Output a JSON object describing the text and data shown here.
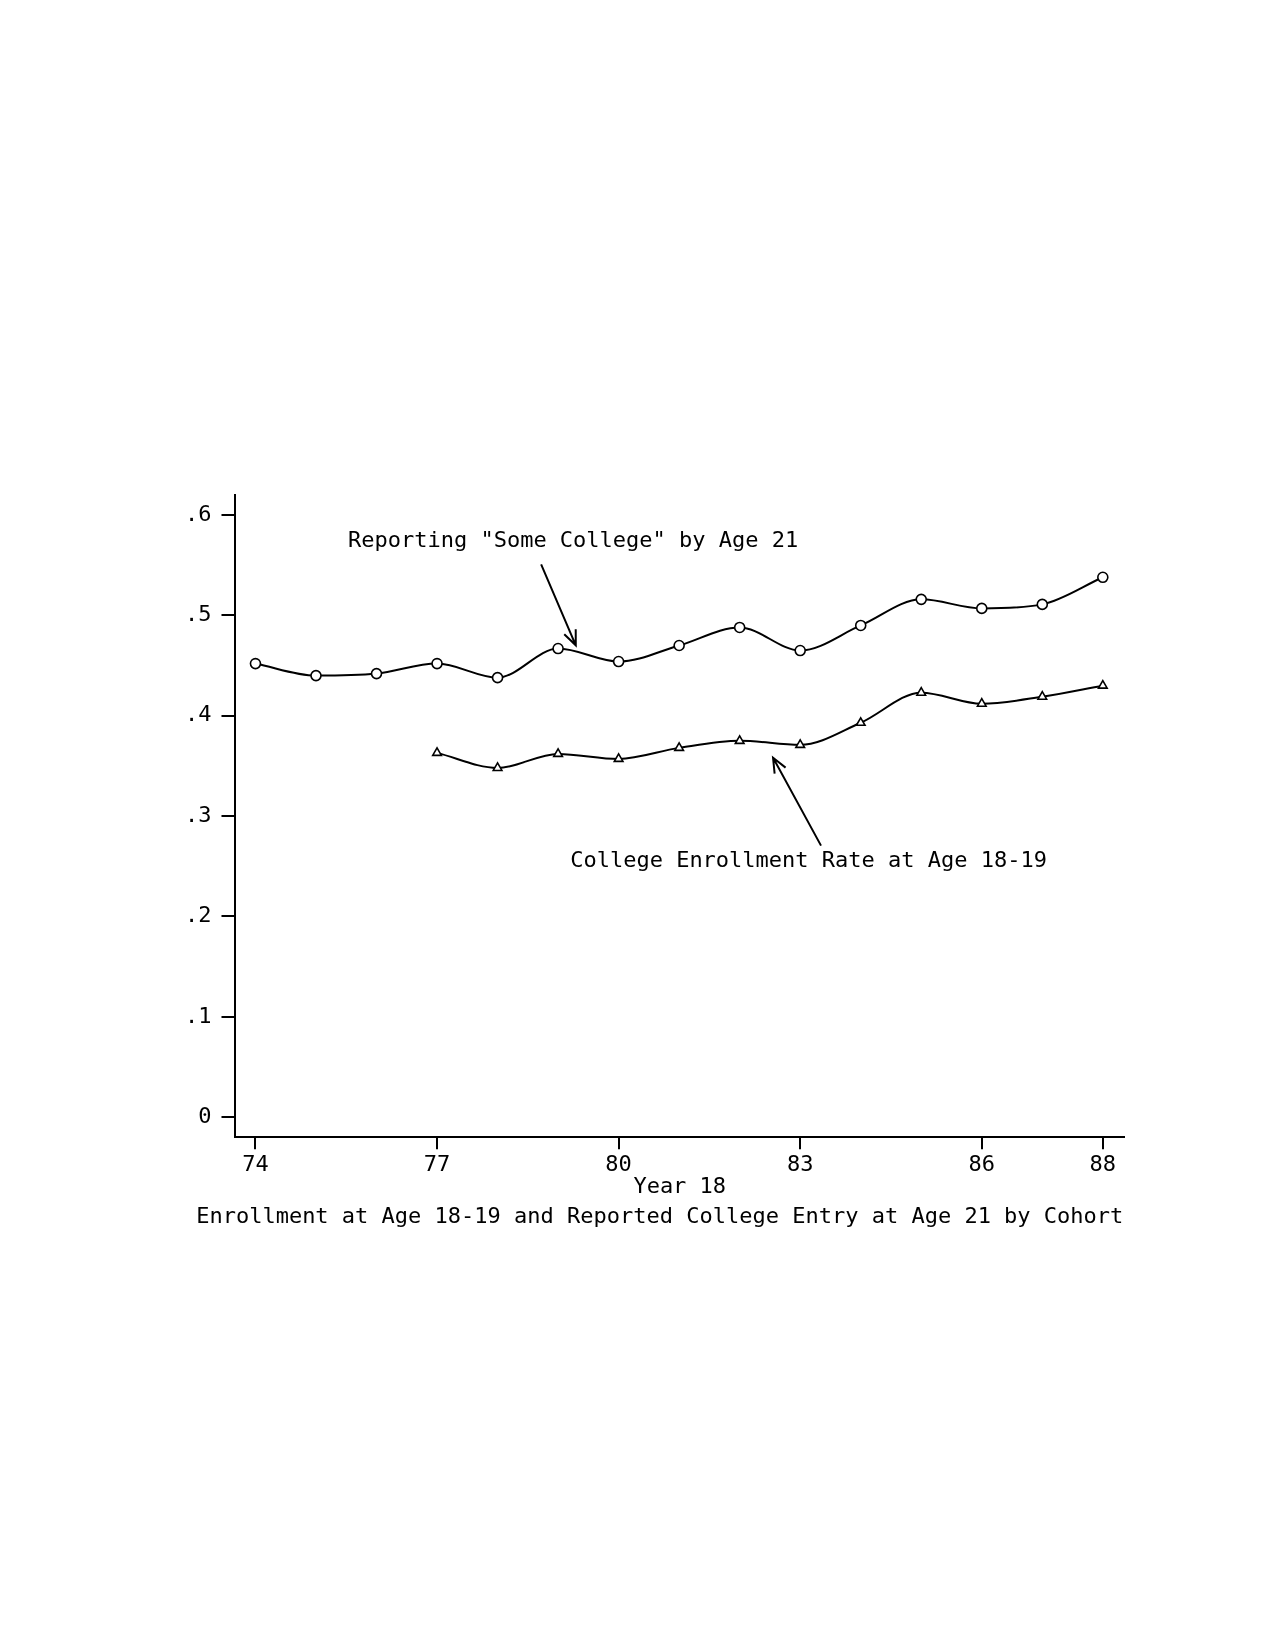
{
  "chart_data": {
    "type": "line",
    "title": "Enrollment at Age 18-19 and Reported College Entry at Age 21 by Cohort",
    "xlabel": "Year 18",
    "xlim": [
      73.67,
      88.35
    ],
    "xticks": [
      74,
      77,
      80,
      83,
      86,
      88
    ],
    "ylim": [
      -0.02,
      0.62
    ],
    "yticks": [
      {
        "value": 0,
        "label": "0"
      },
      {
        "value": 0.1,
        "label": ".1"
      },
      {
        "value": 0.2,
        "label": ".2"
      },
      {
        "value": 0.3,
        "label": ".3"
      },
      {
        "value": 0.4,
        "label": ".4"
      },
      {
        "value": 0.5,
        "label": ".5"
      },
      {
        "value": 0.6,
        "label": ".6"
      }
    ],
    "grid": false,
    "legend": false,
    "line_style": "solid",
    "series": [
      {
        "name": "Reporting \"Some College\" by Age 21",
        "color": "#000000",
        "marker": "circle",
        "x": [
          74,
          75,
          76,
          77,
          78,
          79,
          80,
          81,
          82,
          83,
          84,
          85,
          86,
          87,
          88
        ],
        "values": [
          0.452,
          0.44,
          0.442,
          0.452,
          0.438,
          0.467,
          0.454,
          0.47,
          0.488,
          0.465,
          0.49,
          0.516,
          0.507,
          0.511,
          0.538
        ]
      },
      {
        "name": "College Enrollment Rate at Age 18-19",
        "color": "#000000",
        "marker": "triangle",
        "x": [
          77,
          78,
          79,
          80,
          81,
          82,
          83,
          84,
          85,
          86,
          87,
          88
        ],
        "values": [
          0.363,
          0.348,
          0.362,
          0.357,
          0.368,
          0.375,
          0.371,
          0.393,
          0.423,
          0.412,
          0.419,
          0.43
        ]
      }
    ]
  }
}
